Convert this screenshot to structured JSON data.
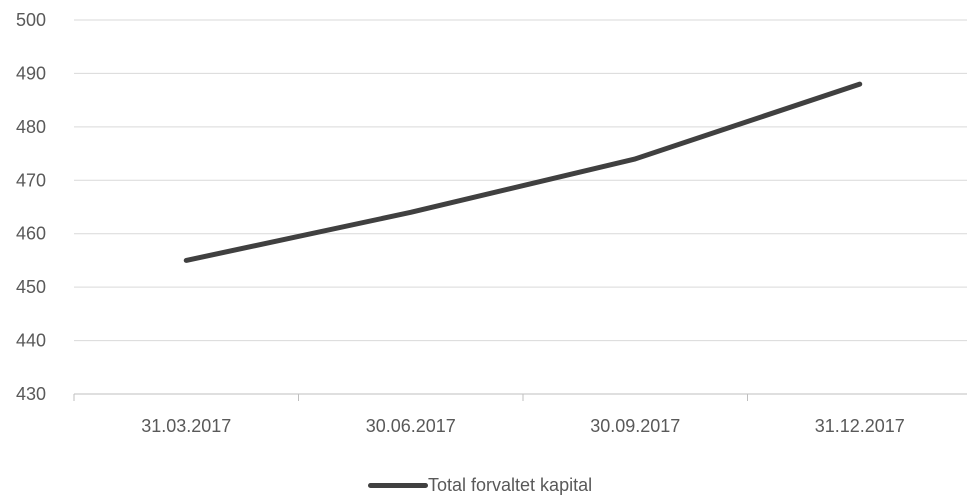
{
  "chart_data": {
    "type": "line",
    "categories": [
      "31.03.2017",
      "30.06.2017",
      "30.09.2017",
      "31.12.2017"
    ],
    "series": [
      {
        "name": "Total forvaltet kapital",
        "values": [
          455,
          464,
          474,
          488
        ],
        "color": "#404040"
      }
    ],
    "ylim": [
      430,
      500
    ],
    "yticks": [
      500,
      490,
      480,
      470,
      460,
      450,
      440,
      430
    ],
    "grid": true,
    "legend_position": "bottom-center",
    "title": "",
    "xlabel": "",
    "ylabel": ""
  },
  "colors": {
    "gridline": "#d9d9d9",
    "axis": "#bfbfbf",
    "text": "#595959"
  }
}
